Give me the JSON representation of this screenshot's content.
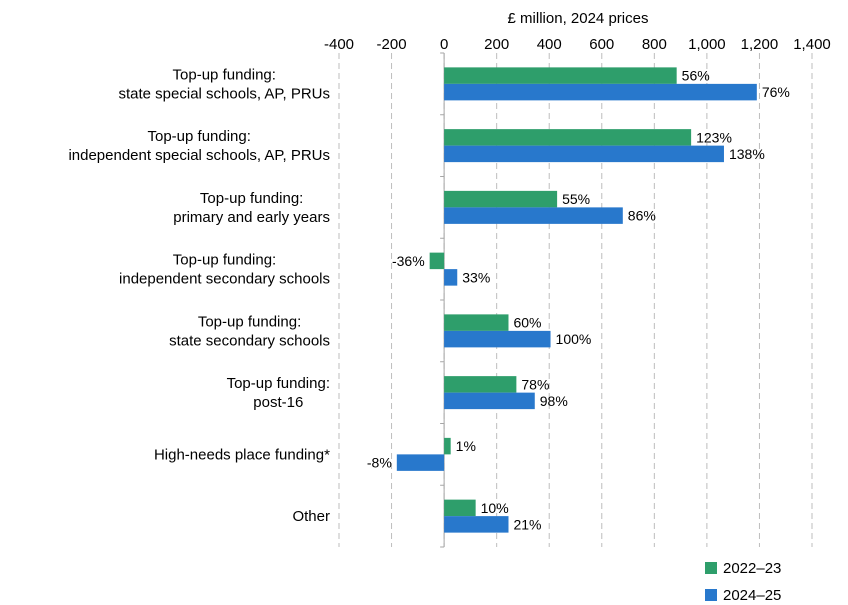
{
  "chart_data": {
    "type": "bar",
    "orientation": "horizontal",
    "title": "£ million,  2024 prices",
    "categories": [
      [
        "Top-up funding:",
        "state special schools, AP, PRUs"
      ],
      [
        "Top-up funding:",
        "independent special schools, AP, PRUs"
      ],
      [
        "Top-up funding:",
        "primary and early years"
      ],
      [
        "Top-up funding:",
        "independent secondary schools"
      ],
      [
        "Top-up funding:",
        "state secondary schools"
      ],
      [
        "Top-up funding:",
        "post-16"
      ],
      [
        "High-needs place funding*"
      ],
      [
        "Other"
      ]
    ],
    "series": [
      {
        "name": "2022–23",
        "color": "#2E9E6B",
        "values": [
          885,
          940,
          430,
          -55,
          245,
          275,
          25,
          120
        ],
        "labels": [
          "56%",
          "123%",
          "55%",
          "-36%",
          "60%",
          "78%",
          "1%",
          "10%"
        ]
      },
      {
        "name": "2024–25",
        "color": "#2878CC",
        "values": [
          1190,
          1065,
          680,
          50,
          405,
          345,
          -180,
          245
        ],
        "labels": [
          "76%",
          "138%",
          "86%",
          "33%",
          "100%",
          "98%",
          "-8%",
          "21%"
        ]
      }
    ],
    "xlim": [
      -400,
      1400
    ],
    "xticks": [
      -400,
      -200,
      0,
      200,
      400,
      600,
      800,
      1000,
      1200,
      1400
    ],
    "xtick_labels": [
      "-400",
      "-200",
      "0",
      "200",
      "400",
      "600",
      "800",
      "1,000",
      "1,200",
      "1,400"
    ],
    "grid": "vertical dashed",
    "axis_position": "top",
    "legend_position": "bottom-right"
  }
}
